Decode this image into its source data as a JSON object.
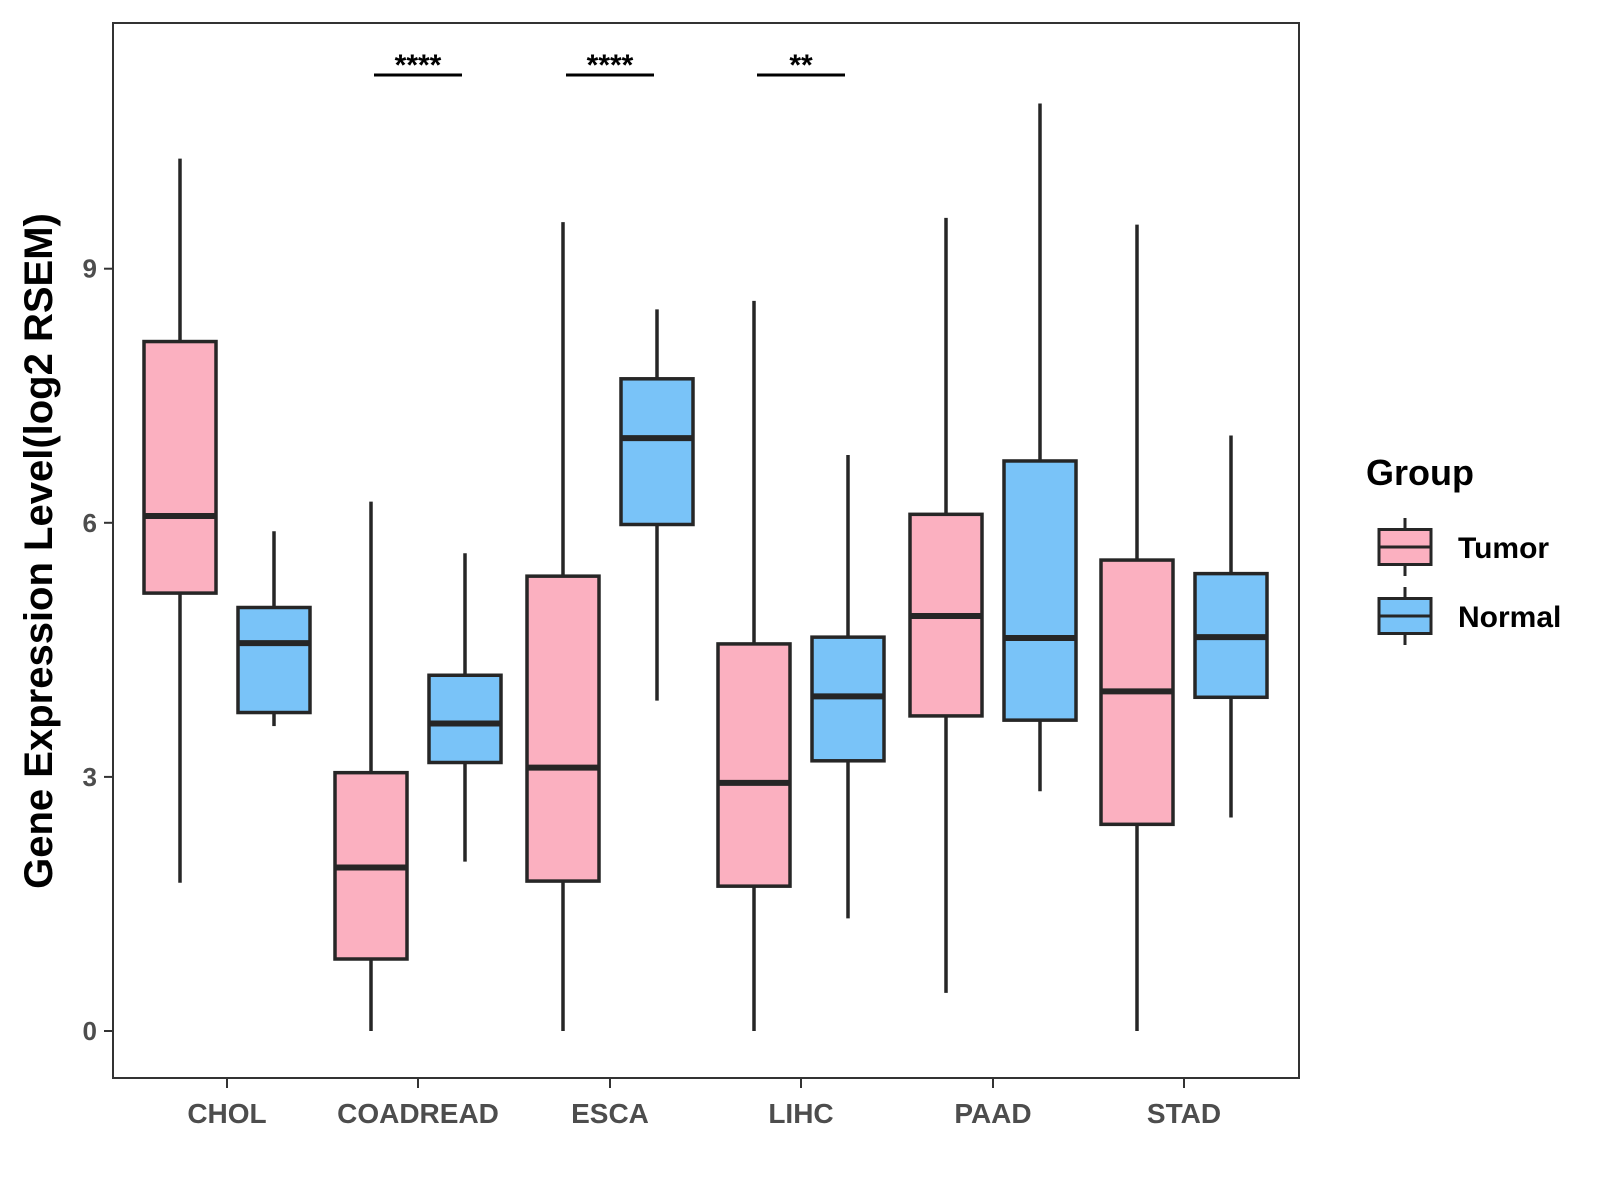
{
  "chart_data": {
    "type": "boxplot",
    "title": "",
    "xlabel": "",
    "ylabel": "Gene Expression Level(log2 RSEM)",
    "ylim": [
      -0.55,
      12.0
    ],
    "yticks": [
      0,
      3,
      6,
      9
    ],
    "ytick_labels": [
      "0",
      "3",
      "6",
      "9"
    ],
    "grid": false,
    "categories": [
      "CHOL",
      "COADREAD",
      "ESCA",
      "LIHC",
      "PAAD",
      "STAD"
    ],
    "legend": {
      "title": "Group",
      "position": "right",
      "entries": [
        {
          "name": "Tumor",
          "color": "#fbb0c0"
        },
        {
          "name": "Normal",
          "color": "#79c3f8"
        }
      ]
    },
    "series": [
      {
        "name": "Tumor",
        "color": "#fbb0c0",
        "boxes": [
          {
            "category": "CHOL",
            "min": 1.75,
            "q1": 5.17,
            "median": 6.08,
            "q3": 8.14,
            "max": 10.3
          },
          {
            "category": "COADREAD",
            "min": 0.0,
            "q1": 0.85,
            "median": 1.93,
            "q3": 3.05,
            "max": 6.25
          },
          {
            "category": "ESCA",
            "min": 0.0,
            "q1": 1.77,
            "median": 3.11,
            "q3": 5.37,
            "max": 9.55
          },
          {
            "category": "LIHC",
            "min": 0.0,
            "q1": 1.71,
            "median": 2.93,
            "q3": 4.57,
            "max": 8.62
          },
          {
            "category": "PAAD",
            "min": 0.45,
            "q1": 3.72,
            "median": 4.9,
            "q3": 6.1,
            "max": 9.6
          },
          {
            "category": "STAD",
            "min": 0.0,
            "q1": 2.44,
            "median": 4.01,
            "q3": 5.56,
            "max": 9.52
          }
        ]
      },
      {
        "name": "Normal",
        "color": "#79c3f8",
        "boxes": [
          {
            "category": "CHOL",
            "min": 3.6,
            "q1": 3.76,
            "median": 4.58,
            "q3": 5.0,
            "max": 5.9
          },
          {
            "category": "COADREAD",
            "min": 2.0,
            "q1": 3.17,
            "median": 3.63,
            "q3": 4.2,
            "max": 5.64
          },
          {
            "category": "ESCA",
            "min": 3.9,
            "q1": 5.98,
            "median": 7.0,
            "q3": 7.7,
            "max": 8.52
          },
          {
            "category": "LIHC",
            "min": 1.33,
            "q1": 3.19,
            "median": 3.95,
            "q3": 4.65,
            "max": 6.8
          },
          {
            "category": "PAAD",
            "min": 2.83,
            "q1": 3.67,
            "median": 4.64,
            "q3": 6.73,
            "max": 10.95
          },
          {
            "category": "STAD",
            "min": 2.52,
            "q1": 3.94,
            "median": 4.65,
            "q3": 5.4,
            "max": 7.03
          }
        ]
      }
    ],
    "annotations": [
      {
        "category": "COADREAD",
        "text": "****"
      },
      {
        "category": "ESCA",
        "text": "****"
      },
      {
        "category": "LIHC",
        "text": "**"
      }
    ]
  }
}
